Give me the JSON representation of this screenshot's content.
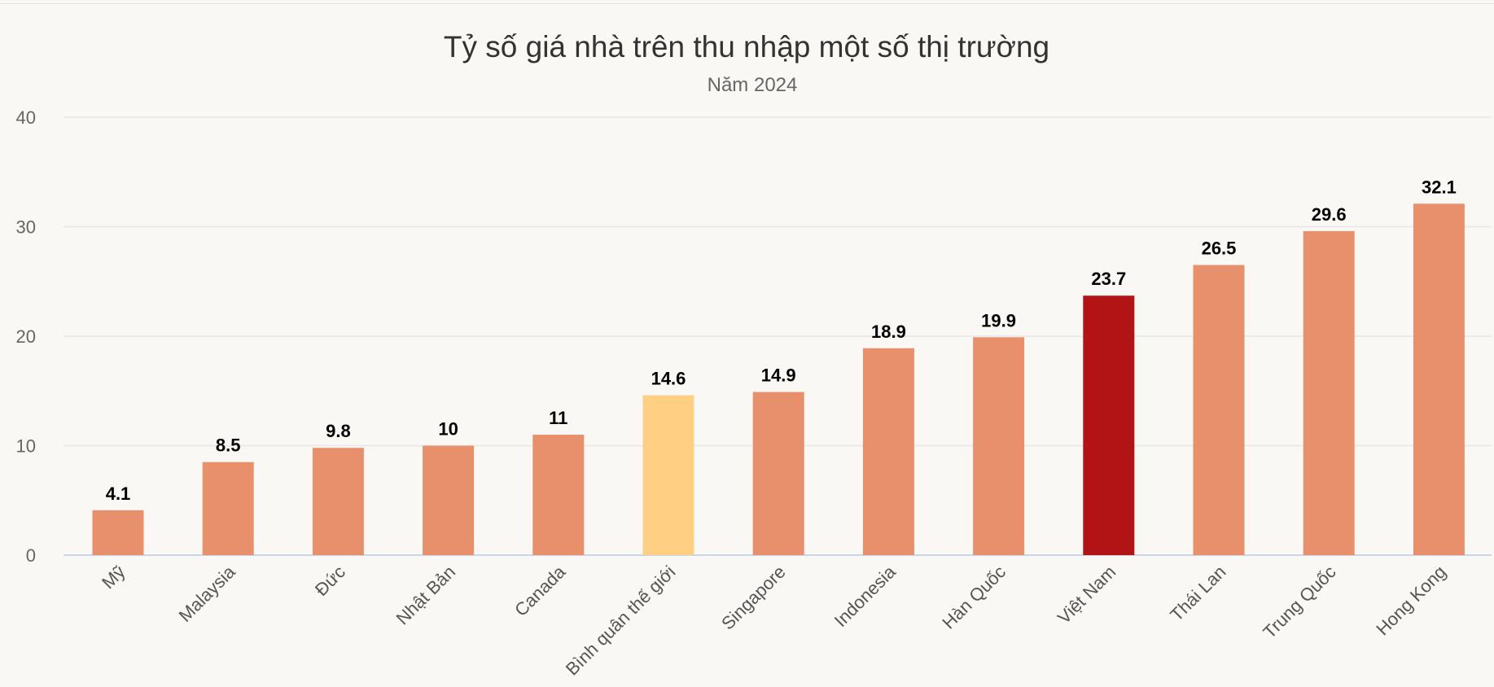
{
  "chart_data": {
    "type": "bar",
    "title": "Tỷ số giá nhà trên thu nhập một số thị trường",
    "subtitle": "Năm 2024",
    "categories": [
      "Mỹ",
      "Malaysia",
      "Đức",
      "Nhật Bản",
      "Canada",
      "Bình quân thế giới",
      "Singapore",
      "Indonesia",
      "Hàn Quốc",
      "Việt Nam",
      "Thái Lan",
      "Trung Quốc",
      "Hong Kong"
    ],
    "values": [
      4.1,
      8.5,
      9.8,
      10,
      11,
      14.6,
      14.9,
      18.9,
      19.9,
      23.7,
      26.5,
      29.6,
      32.1
    ],
    "value_labels": [
      "4.1",
      "8.5",
      "9.8",
      "10",
      "11",
      "14.6",
      "14.9",
      "18.9",
      "19.9",
      "23.7",
      "26.5",
      "29.6",
      "32.1"
    ],
    "ylim": [
      0,
      40
    ],
    "yticks": [
      "0",
      "10",
      "20",
      "30",
      "40"
    ],
    "grid": true,
    "colors": {
      "default": "#e8906c",
      "world_average": "#ffd083",
      "vietnam": "#b21315"
    },
    "bar_colors": [
      "#e8906c",
      "#e8906c",
      "#e8906c",
      "#e8906c",
      "#e8906c",
      "#ffd083",
      "#e8906c",
      "#e8906c",
      "#e8906c",
      "#b21315",
      "#e8906c",
      "#e8906c",
      "#e8906c"
    ]
  }
}
